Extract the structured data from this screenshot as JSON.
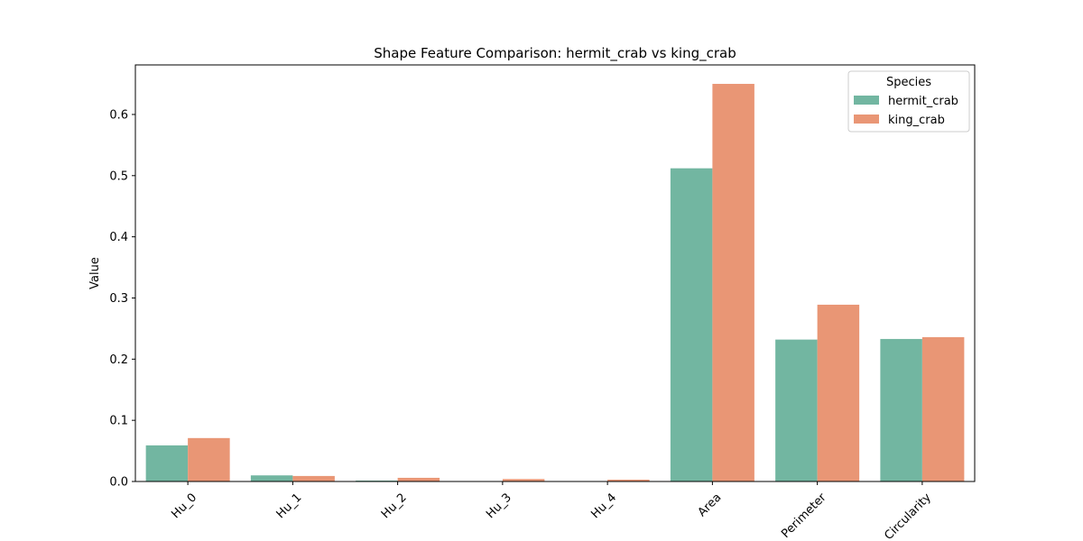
{
  "chart_data": {
    "type": "bar",
    "title": "Shape Feature Comparison: hermit_crab vs king_crab",
    "xlabel": "",
    "ylabel": "Value",
    "ylim": [
      0,
      0.681
    ],
    "yticks": [
      "0.0",
      "0.1",
      "0.2",
      "0.3",
      "0.4",
      "0.5",
      "0.6"
    ],
    "categories": [
      "Hu_0",
      "Hu_1",
      "Hu_2",
      "Hu_3",
      "Hu_4",
      "Area",
      "Perimeter",
      "Circularity"
    ],
    "series": [
      {
        "name": "hermit_crab",
        "color": "#72b6a1",
        "values": [
          0.059,
          0.01,
          0.0015,
          0.0001,
          0.0001,
          0.512,
          0.232,
          0.233
        ]
      },
      {
        "name": "king_crab",
        "color": "#e99675",
        "values": [
          0.071,
          0.009,
          0.006,
          0.004,
          0.003,
          0.65,
          0.289,
          0.236
        ]
      }
    ],
    "legend": {
      "title": "Species",
      "position": "top-right"
    },
    "grid": false
  }
}
